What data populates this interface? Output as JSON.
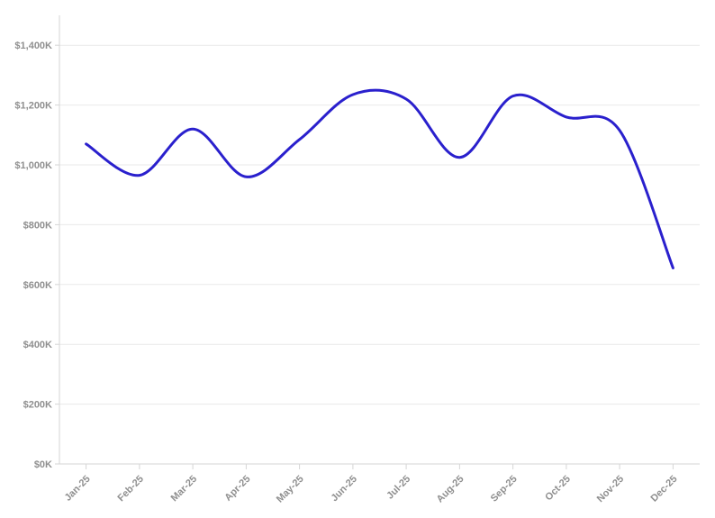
{
  "chart": {
    "background": "#ffffff",
    "line_color": "#2a20cd",
    "axis_color": "#d6d6d6",
    "grid_color": "#e9e9e9",
    "tick_color": "#d6d6d6",
    "label_color": "#8f8f8f",
    "line_width": 3
  },
  "chart_data": {
    "type": "line",
    "curve": "spline",
    "title": "",
    "xlabel": "",
    "ylabel": "",
    "categories": [
      "Jan-25",
      "Feb-25",
      "Mar-25",
      "Apr-25",
      "May-25",
      "Jun-25",
      "Jul-25",
      "Aug-25",
      "Sep-25",
      "Oct-25",
      "Nov-25",
      "Dec-25"
    ],
    "series": [
      {
        "name": "",
        "values": [
          1070,
          965,
          1120,
          960,
          1085,
          1235,
          1220,
          1025,
          1230,
          1160,
          1115,
          655
        ]
      }
    ],
    "value_unit": "$K",
    "ylim": [
      0,
      1500
    ],
    "yticks": [
      0,
      200,
      400,
      600,
      800,
      1000,
      1200,
      1400
    ],
    "ytick_labels": [
      "$0K",
      "$200K",
      "$400K",
      "$600K",
      "$800K",
      "$1,000K",
      "$1,200K",
      "$1,400K"
    ],
    "x_label_rotation": -45,
    "grid": "horizontal",
    "legend": "none"
  }
}
